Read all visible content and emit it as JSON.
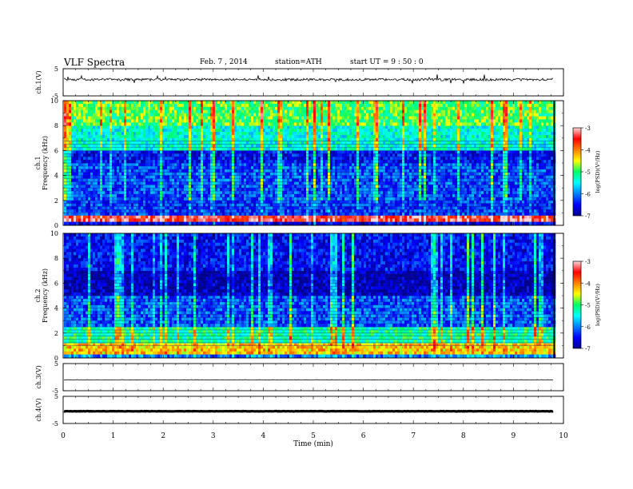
{
  "header": {
    "title": "VLF Spectra",
    "date": "Feb. 7 , 2014",
    "station": "station=ATH",
    "start": "start UT = 9 : 50 : 0"
  },
  "chart_data": [
    {
      "type": "line",
      "panel": "ch1-waveform",
      "ylabel": "ch.1(V)",
      "yticks": [
        "5",
        "-5"
      ],
      "ylim": [
        -5,
        5
      ],
      "xlim": [
        0,
        10
      ],
      "data_extent_min": 9.8,
      "baseline_v": 1.0,
      "color": "#000000"
    },
    {
      "type": "heatmap",
      "panel": "ch1-spectrogram",
      "ylabel": "ch.1 Frequency (kHz)",
      "yticks": [
        "0",
        "2",
        "4",
        "6",
        "8",
        "10"
      ],
      "ylim": [
        0,
        10
      ],
      "xlim": [
        0,
        10
      ],
      "colorbar": {
        "label": "log(PSD)(V²/Hz)",
        "ticks": [
          "-3",
          "-4",
          "-5",
          "-6",
          "-7"
        ],
        "range": [
          -7,
          -3
        ]
      },
      "band_levels": [
        {
          "fmin": 0.0,
          "fmax": 0.3,
          "level": -6.6
        },
        {
          "fmin": 0.3,
          "fmax": 0.8,
          "level": -3.4
        },
        {
          "fmin": 0.8,
          "fmax": 2.0,
          "level": -6.3
        },
        {
          "fmin": 2.0,
          "fmax": 5.0,
          "level": -6.2
        },
        {
          "fmin": 5.0,
          "fmax": 6.0,
          "level": -6.5
        },
        {
          "fmin": 6.0,
          "fmax": 8.0,
          "level": -5.4
        },
        {
          "fmin": 8.0,
          "fmax": 10.0,
          "level": -4.9
        }
      ]
    },
    {
      "type": "heatmap",
      "panel": "ch2-spectrogram",
      "ylabel": "ch.2 Frequency (kHz)",
      "yticks": [
        "0",
        "2",
        "4",
        "6",
        "8",
        "10"
      ],
      "ylim": [
        0,
        10
      ],
      "xlim": [
        0,
        10
      ],
      "colorbar": {
        "label": "log(PSD)(V²/Hz)",
        "ticks": [
          "-3",
          "-4",
          "-5",
          "-6",
          "-7"
        ],
        "range": [
          -7,
          -3
        ]
      },
      "band_levels": [
        {
          "fmin": 0.0,
          "fmax": 0.3,
          "level": -6.0
        },
        {
          "fmin": 0.3,
          "fmax": 1.2,
          "level": -4.3
        },
        {
          "fmin": 1.2,
          "fmax": 2.5,
          "level": -5.2
        },
        {
          "fmin": 2.5,
          "fmax": 5.0,
          "level": -6.2
        },
        {
          "fmin": 5.0,
          "fmax": 7.0,
          "level": -6.8
        },
        {
          "fmin": 7.0,
          "fmax": 10.0,
          "level": -6.5
        }
      ]
    },
    {
      "type": "line",
      "panel": "ch3-waveform",
      "ylabel": "ch.3(V)",
      "yticks": [
        "5",
        "-5"
      ],
      "ylim": [
        -5,
        5
      ],
      "xlim": [
        0,
        10
      ],
      "data_extent_min": 9.8,
      "baseline_v": -1.0,
      "color": "#000000"
    },
    {
      "type": "line",
      "panel": "ch4-waveform",
      "ylabel": "ch.4(V)",
      "yticks": [
        "5",
        "-5"
      ],
      "ylim": [
        -5,
        5
      ],
      "xlim": [
        0,
        10
      ],
      "data_extent_min": 9.8,
      "baseline_v": -0.5,
      "color": "#000000"
    }
  ],
  "xaxis": {
    "label": "Time (min)",
    "ticks": [
      "0",
      "1",
      "2",
      "3",
      "4",
      "5",
      "6",
      "7",
      "8",
      "9",
      "10"
    ]
  }
}
